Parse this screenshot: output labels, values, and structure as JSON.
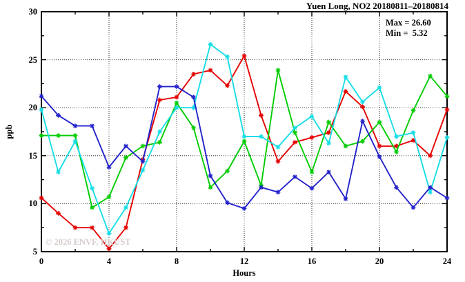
{
  "title": "Yuen Long, NO2 20180811–20180814",
  "annotations": {
    "max_label": "Max = 26.60",
    "min_label": "Min =  5.32"
  },
  "watermark": "© 2026 ENVF, HKUST",
  "axes": {
    "ylabel": "ppb",
    "xlabel": "Hours",
    "y_tick_labels": [
      30,
      25,
      20,
      15,
      10,
      5
    ],
    "x_tick_labels": [
      0,
      4,
      8,
      12,
      16,
      20,
      24
    ]
  },
  "colors": {
    "red": "#e60000",
    "blue": "#2323cc",
    "green": "#00cc00",
    "cyan": "#17dde6",
    "grid": "#000000",
    "watermark": "#d8cbcb"
  },
  "chart_data": {
    "type": "line",
    "title": "Yuen Long, NO2 20180811–20180814",
    "xlabel": "Hours",
    "ylabel": "ppb",
    "xlim": [
      0,
      24
    ],
    "ylim": [
      5,
      30
    ],
    "x_major_ticks": [
      0,
      4,
      8,
      12,
      16,
      20,
      24
    ],
    "x_minor_ticks": [
      2,
      6,
      10,
      14,
      18,
      22
    ],
    "y_major_ticks": [
      5,
      10,
      15,
      20,
      25,
      30
    ],
    "y_minor_ticks": [
      7.5,
      12.5,
      17.5,
      22.5,
      27.5
    ],
    "grid_x": [
      4,
      8,
      12,
      16,
      20
    ],
    "grid_y": [
      10,
      15,
      20,
      25
    ],
    "legend_position": "none",
    "marker": "star",
    "x": [
      0,
      1,
      2,
      3,
      4,
      5,
      6,
      7,
      8,
      9,
      10,
      11,
      12,
      13,
      14,
      15,
      16,
      17,
      18,
      19,
      20,
      21,
      22,
      23,
      24
    ],
    "series": [
      {
        "name": "red-line",
        "color": "#e60000",
        "values": [
          10.6,
          9.0,
          7.5,
          7.5,
          5.3,
          7.5,
          14.6,
          20.8,
          21.1,
          23.5,
          23.9,
          22.3,
          25.4,
          19.2,
          14.4,
          16.4,
          16.9,
          17.4,
          21.7,
          20.1,
          16.0,
          16.0,
          16.6,
          15.0,
          19.8
        ]
      },
      {
        "name": "green-line",
        "color": "#00cc00",
        "values": [
          17.1,
          17.1,
          17.1,
          9.6,
          10.7,
          14.8,
          16.0,
          16.4,
          20.5,
          17.9,
          11.7,
          13.4,
          16.5,
          11.9,
          23.9,
          17.4,
          13.3,
          18.5,
          16.0,
          16.5,
          18.5,
          15.4,
          19.7,
          23.3,
          21.2
        ]
      },
      {
        "name": "cyan-line",
        "color": "#17dde6",
        "values": [
          19.8,
          13.3,
          16.5,
          11.6,
          6.9,
          9.6,
          13.5,
          17.5,
          20.0,
          20.0,
          26.6,
          25.3,
          17.0,
          17.0,
          15.9,
          17.9,
          19.1,
          16.3,
          23.2,
          20.6,
          22.1,
          17.0,
          17.4,
          11.2,
          16.9
        ]
      },
      {
        "name": "blue-line",
        "color": "#2323cc",
        "values": [
          21.2,
          19.2,
          18.1,
          18.1,
          13.8,
          16.0,
          14.4,
          22.2,
          22.2,
          21.1,
          12.9,
          10.1,
          9.5,
          11.7,
          11.2,
          12.8,
          11.6,
          13.3,
          10.5,
          18.6,
          14.9,
          11.7,
          9.6,
          11.7,
          10.6
        ]
      }
    ],
    "stats": {
      "max": 26.6,
      "min": 5.32
    }
  }
}
